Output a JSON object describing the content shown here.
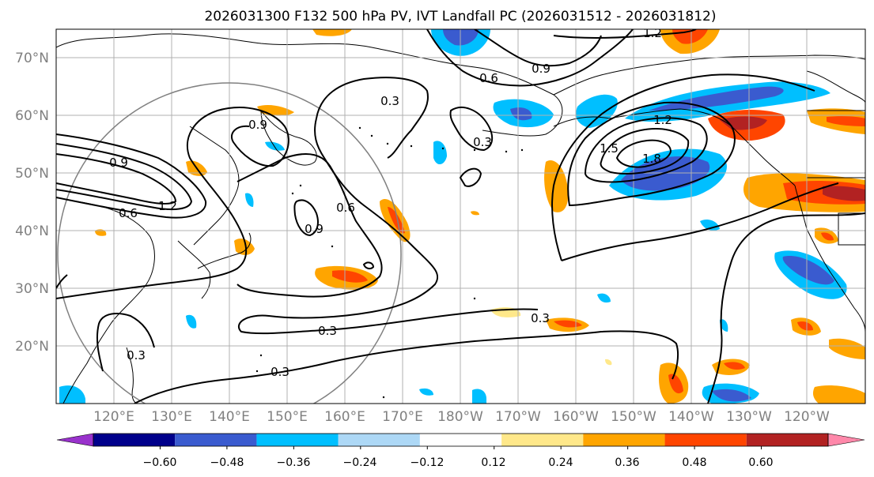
{
  "title": "2026031300 F132 500 hPa PV, IVT Landfall PC (2026031512 - 2026031812)",
  "map": {
    "lon_labels": [
      "120°E",
      "130°E",
      "140°E",
      "150°E",
      "160°E",
      "170°E",
      "180°W",
      "170°W",
      "160°W",
      "150°W",
      "140°W",
      "130°W",
      "120°W"
    ],
    "lat_labels": [
      "70°N",
      "60°N",
      "50°N",
      "40°N",
      "30°N",
      "20°N"
    ],
    "extent": {
      "lon_west": 110,
      "lon_east": 250,
      "lat_south": 10,
      "lat_north": 75
    }
  },
  "colorbar": {
    "ticks": [
      "−0.60",
      "−0.48",
      "−0.36",
      "−0.24",
      "−0.12",
      "0.12",
      "0.24",
      "0.36",
      "0.48",
      "0.60"
    ],
    "colors": [
      "#9932CC",
      "#00008B",
      "#3A5BCF",
      "#00BFFF",
      "#ADD8F6",
      "#FFFFFF",
      "#FFE88A",
      "#FFA500",
      "#FF4500",
      "#B22222",
      "#FF88AA"
    ]
  },
  "contour_labels": [
    "1.2",
    "0.9",
    "0.6",
    "0.3",
    "0.9",
    "0.3",
    "0.9",
    "1.2",
    "1.5",
    "1.8",
    "0.6",
    "0.9",
    "0.6",
    "1.2",
    "0.3",
    "0.3",
    "0.3",
    "0.3"
  ]
}
